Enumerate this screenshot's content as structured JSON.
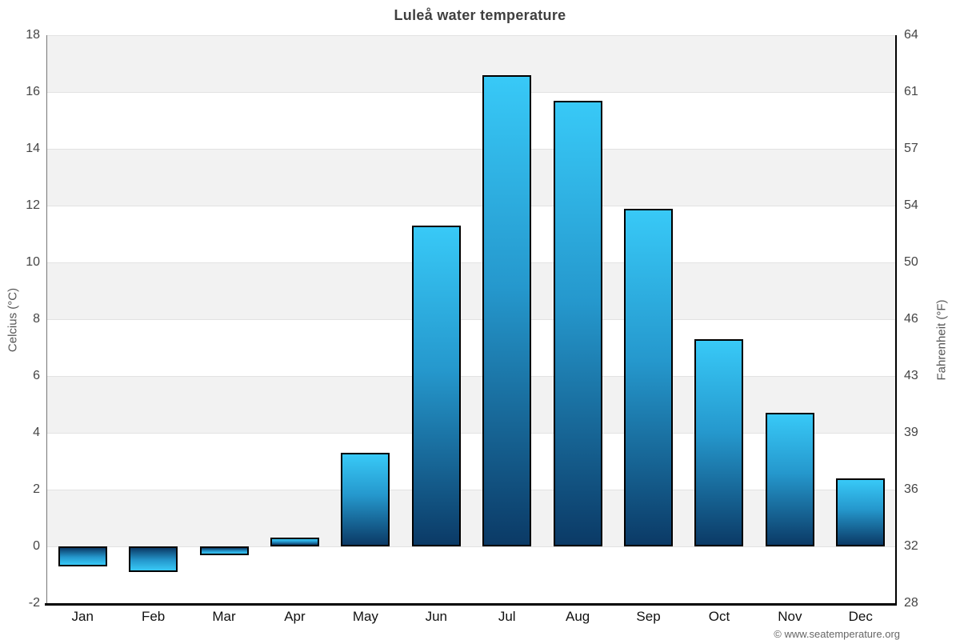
{
  "watermark": "© www.seatemperature.org",
  "colors": {
    "bar_gradient_top": "#38c9f7",
    "bar_gradient_mid": "#2598cd",
    "bar_gradient_bottom": "#0b3a66",
    "bar_border": "#000000",
    "band_fill": "#f2f2f2",
    "gridline": "#e2e2e2",
    "left_axis_line": "#777777",
    "right_axis_line": "#000000",
    "bottom_axis_line": "#000000",
    "title_color": "#3f3f3f",
    "tick_label_color": "#454545"
  },
  "chart_data": {
    "type": "bar",
    "title": "Luleå water temperature",
    "ylabel_left": "Celcius (°C)",
    "ylabel_right": "Fahrenheit (°F)",
    "categories": [
      "Jan",
      "Feb",
      "Mar",
      "Apr",
      "May",
      "Jun",
      "Jul",
      "Aug",
      "Sep",
      "Oct",
      "Nov",
      "Dec"
    ],
    "values": [
      -0.7,
      -0.9,
      -0.3,
      0.3,
      3.3,
      11.3,
      16.6,
      15.7,
      11.9,
      7.3,
      4.7,
      2.4
    ],
    "unit": "°C",
    "ylim_celsius": [
      -2,
      18
    ],
    "yticks_celsius": [
      18,
      16,
      14,
      12,
      10,
      8,
      6,
      4,
      2,
      0,
      -2
    ],
    "yticks_fahrenheit": [
      64,
      61,
      57,
      54,
      50,
      46,
      43,
      39,
      36,
      32,
      28
    ],
    "grid": "alternating-horizontal-bands",
    "legend": "none"
  }
}
